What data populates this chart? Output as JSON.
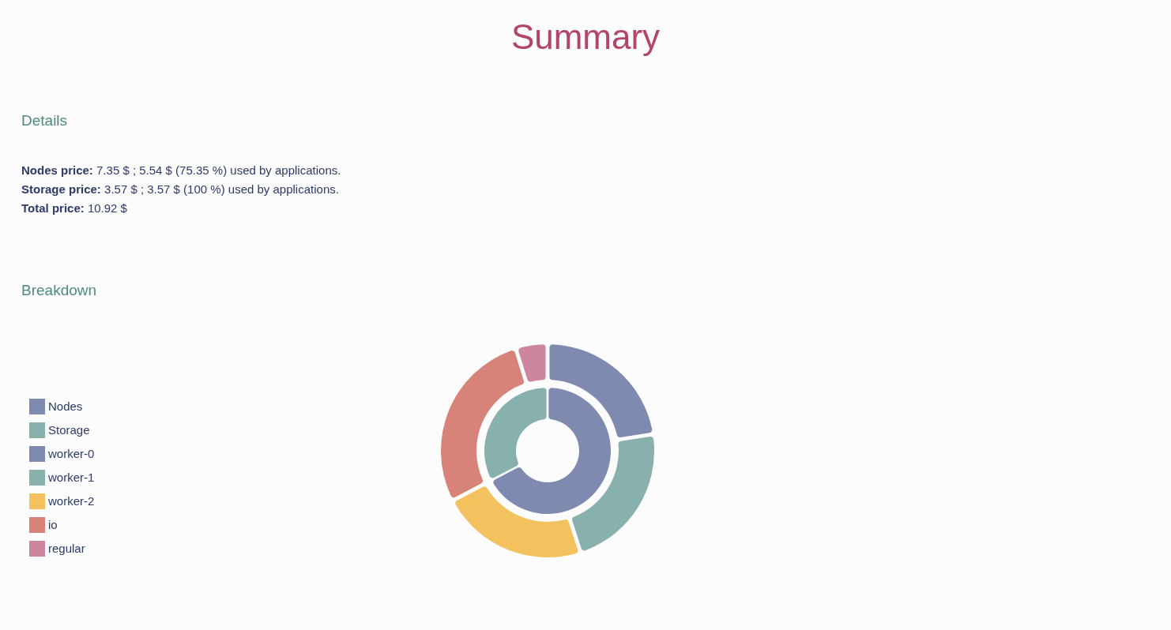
{
  "chart_data": {
    "type": "donut",
    "title": "Summary",
    "annotations": [
      "Details",
      "Nodes price: 7.35 $ ; 5.54 $ (75.35 %) used by applications.",
      "Storage price: 3.57 $ ; 3.57 $ (100 %) used by applications.",
      "Total price: 10.92 $",
      "Breakdown"
    ],
    "categories": [
      "Nodes",
      "Storage",
      "worker-0",
      "worker-1",
      "worker-2",
      "io",
      "regular"
    ],
    "colors": [
      "#7f8ab0",
      "#88b0ac",
      "#7f8ab0",
      "#88b0ac",
      "#f3c15e",
      "#d7837a",
      "#cd85a0"
    ],
    "series": [
      {
        "values": [
          67.3,
          32.7,
          null,
          null,
          null,
          null,
          null
        ]
      },
      {
        "values": [
          null,
          null,
          22.5,
          22.5,
          22.3,
          27.9,
          4.8
        ]
      }
    ],
    "legend": "left"
  }
}
